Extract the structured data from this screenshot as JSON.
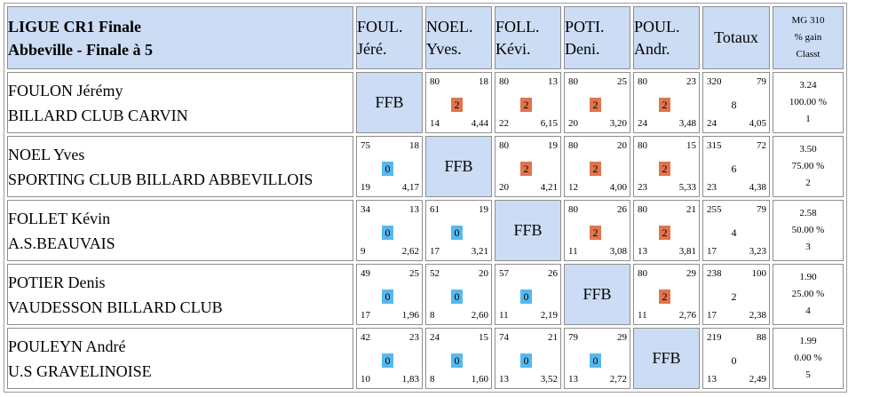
{
  "title": {
    "line1": "LIGUE CR1 Finale",
    "line2": "Abbeville - Finale à 5"
  },
  "columns": [
    {
      "l1": "FOUL.",
      "l2": "Jéré."
    },
    {
      "l1": "NOEL.",
      "l2": "Yves."
    },
    {
      "l1": "FOLL.",
      "l2": "Kévi."
    },
    {
      "l1": "POTI.",
      "l2": "Deni."
    },
    {
      "l1": "POUL.",
      "l2": "Andr."
    }
  ],
  "totals_header": "Totaux",
  "mg_header": {
    "l1": "MG 310",
    "l2": "% gain",
    "l3": "Classt"
  },
  "ffb_label": "FFB",
  "colors": {
    "header_bg": "#cbdcf4",
    "win_badge": "#e0744f",
    "loss_badge": "#56b8f0"
  },
  "rows": [
    {
      "name": "FOULON Jérémy",
      "club": "BILLARD CLUB CARVIN",
      "cells": [
        null,
        {
          "a": "80",
          "b": "18",
          "pts": "2",
          "c": "14",
          "d": "4,44"
        },
        {
          "a": "80",
          "b": "13",
          "pts": "2",
          "c": "22",
          "d": "6,15"
        },
        {
          "a": "80",
          "b": "25",
          "pts": "2",
          "c": "20",
          "d": "3,20"
        },
        {
          "a": "80",
          "b": "23",
          "pts": "2",
          "c": "24",
          "d": "3,48"
        }
      ],
      "totals": {
        "a": "320",
        "b": "79",
        "pts": "8",
        "c": "24",
        "d": "4,05"
      },
      "mg": {
        "avg": "3.24",
        "pct": "100.00 %",
        "rank": "1"
      }
    },
    {
      "name": "NOEL Yves",
      "club": "SPORTING CLUB BILLARD ABBEVILLOIS",
      "cells": [
        {
          "a": "75",
          "b": "18",
          "pts": "0",
          "c": "19",
          "d": "4,17"
        },
        null,
        {
          "a": "80",
          "b": "19",
          "pts": "2",
          "c": "20",
          "d": "4,21"
        },
        {
          "a": "80",
          "b": "20",
          "pts": "2",
          "c": "12",
          "d": "4,00"
        },
        {
          "a": "80",
          "b": "15",
          "pts": "2",
          "c": "23",
          "d": "5,33"
        }
      ],
      "totals": {
        "a": "315",
        "b": "72",
        "pts": "6",
        "c": "23",
        "d": "4,38"
      },
      "mg": {
        "avg": "3.50",
        "pct": "75.00 %",
        "rank": "2"
      }
    },
    {
      "name": "FOLLET Kévin",
      "club": "A.S.BEAUVAIS",
      "cells": [
        {
          "a": "34",
          "b": "13",
          "pts": "0",
          "c": "9",
          "d": "2,62"
        },
        {
          "a": "61",
          "b": "19",
          "pts": "0",
          "c": "17",
          "d": "3,21"
        },
        null,
        {
          "a": "80",
          "b": "26",
          "pts": "2",
          "c": "11",
          "d": "3,08"
        },
        {
          "a": "80",
          "b": "21",
          "pts": "2",
          "c": "13",
          "d": "3,81"
        }
      ],
      "totals": {
        "a": "255",
        "b": "79",
        "pts": "4",
        "c": "17",
        "d": "3,23"
      },
      "mg": {
        "avg": "2.58",
        "pct": "50.00 %",
        "rank": "3"
      }
    },
    {
      "name": "POTIER Denis",
      "club": "VAUDESSON BILLARD CLUB",
      "cells": [
        {
          "a": "49",
          "b": "25",
          "pts": "0",
          "c": "17",
          "d": "1,96"
        },
        {
          "a": "52",
          "b": "20",
          "pts": "0",
          "c": "8",
          "d": "2,60"
        },
        {
          "a": "57",
          "b": "26",
          "pts": "0",
          "c": "11",
          "d": "2,19"
        },
        null,
        {
          "a": "80",
          "b": "29",
          "pts": "2",
          "c": "11",
          "d": "2,76"
        }
      ],
      "totals": {
        "a": "238",
        "b": "100",
        "pts": "2",
        "c": "17",
        "d": "2,38"
      },
      "mg": {
        "avg": "1.90",
        "pct": "25.00 %",
        "rank": "4"
      }
    },
    {
      "name": "POULEYN André",
      "club": "U.S GRAVELINOISE",
      "cells": [
        {
          "a": "42",
          "b": "23",
          "pts": "0",
          "c": "10",
          "d": "1,83"
        },
        {
          "a": "24",
          "b": "15",
          "pts": "0",
          "c": "8",
          "d": "1,60"
        },
        {
          "a": "74",
          "b": "21",
          "pts": "0",
          "c": "13",
          "d": "3,52"
        },
        {
          "a": "79",
          "b": "29",
          "pts": "0",
          "c": "13",
          "d": "2,72"
        },
        null
      ],
      "totals": {
        "a": "219",
        "b": "88",
        "pts": "0",
        "c": "13",
        "d": "2,49"
      },
      "mg": {
        "avg": "1.99",
        "pct": "0.00 %",
        "rank": "5"
      }
    }
  ]
}
